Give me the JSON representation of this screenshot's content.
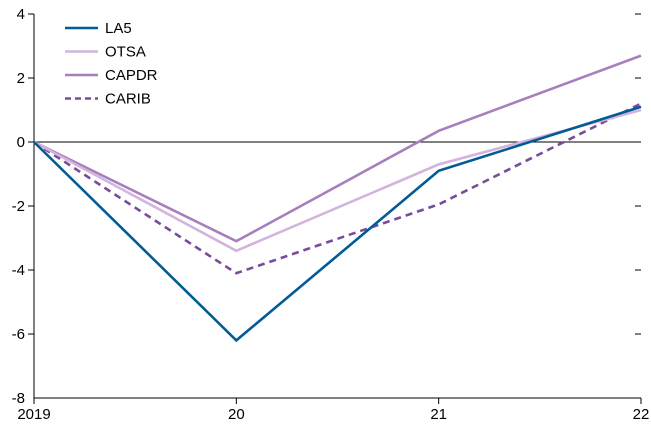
{
  "chart_data": {
    "type": "line",
    "x": [
      "2019",
      "20",
      "21",
      "22"
    ],
    "ylim": [
      -8,
      4
    ],
    "yticks": [
      4,
      2,
      0,
      -2,
      -4,
      -6,
      -8
    ],
    "ytick_labels": [
      "4",
      "2",
      "0",
      "-2",
      "-4",
      "-6",
      "-8"
    ],
    "grid": false,
    "zero_line": true,
    "legend_position": "top-left",
    "series": [
      {
        "name": "LA5",
        "values": [
          0,
          -6.2,
          -0.9,
          1.1
        ],
        "color": "#005b96",
        "dashed": false
      },
      {
        "name": "OTSA",
        "values": [
          0,
          -3.4,
          -0.7,
          1.0
        ],
        "color": "#d2b4dc",
        "dashed": false
      },
      {
        "name": "CAPDR",
        "values": [
          0,
          -3.1,
          0.35,
          2.7
        ],
        "color": "#a77fbd",
        "dashed": false
      },
      {
        "name": "CARIB",
        "values": [
          0,
          -4.1,
          -1.95,
          1.2
        ],
        "color": "#7b4b9b",
        "dashed": true
      }
    ]
  }
}
